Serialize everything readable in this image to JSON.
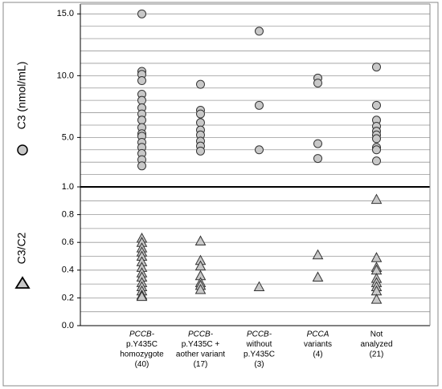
{
  "chart_data": [
    {
      "type": "scatter",
      "marker": "circle",
      "color": "#c8c8c8",
      "ylabel": "C3 (nmol/mL)",
      "ylim": [
        1,
        15.8
      ],
      "yticks": [
        {
          "value": 1,
          "label": "1.0"
        },
        {
          "value": 5,
          "label": "5.0"
        },
        {
          "value": 10,
          "label": "10.0"
        },
        {
          "value": 15,
          "label": "15.0"
        }
      ],
      "values": [
        [
          15.0,
          10.35,
          10.1,
          9.6,
          8.5,
          8.0,
          7.4,
          6.9,
          6.4,
          5.8,
          5.3,
          5.1,
          4.6,
          4.2,
          3.7,
          3.2,
          2.7
        ],
        [
          9.3,
          7.2,
          6.9,
          6.2,
          5.6,
          5.2,
          4.7,
          4.3,
          3.9
        ],
        [
          13.6,
          7.6,
          4.0
        ],
        [
          9.8,
          9.4,
          4.5,
          3.3
        ],
        [
          10.7,
          7.6,
          6.4,
          5.9,
          5.5,
          5.2,
          4.9,
          4.2,
          4.0,
          3.1
        ]
      ]
    },
    {
      "type": "scatter",
      "marker": "triangle",
      "color": "#c8c8c8",
      "ylabel": "C3/C2",
      "ylim": [
        0,
        1
      ],
      "yticks": [
        {
          "value": 0,
          "label": "0.0"
        },
        {
          "value": 0.2,
          "label": "0.2"
        },
        {
          "value": 0.4,
          "label": "0.4"
        },
        {
          "value": 0.6,
          "label": "0.6"
        },
        {
          "value": 0.8,
          "label": "0.8"
        }
      ],
      "categories": [
        [
          "PCCB-",
          "p.Y435C",
          "homozygote",
          "(40)"
        ],
        [
          "PCCB-",
          "p.Y435C +",
          "aother variant",
          "(17)"
        ],
        [
          "PCCB-",
          "without",
          "p.Y435C",
          "(3)"
        ],
        [
          "PCCA",
          "variants",
          "(4)"
        ],
        [
          "Not",
          "analyzed",
          "(21)"
        ]
      ],
      "values": [
        [
          0.63,
          0.6,
          0.56,
          0.53,
          0.5,
          0.46,
          0.42,
          0.38,
          0.35,
          0.31,
          0.28,
          0.25,
          0.22,
          0.21
        ],
        [
          0.61,
          0.47,
          0.43,
          0.36,
          0.31,
          0.29,
          0.26
        ],
        [
          0.28
        ],
        [
          0.51,
          0.35
        ],
        [
          0.91,
          0.49,
          0.42,
          0.4,
          0.34,
          0.31,
          0.28,
          0.25,
          0.19
        ]
      ]
    }
  ]
}
